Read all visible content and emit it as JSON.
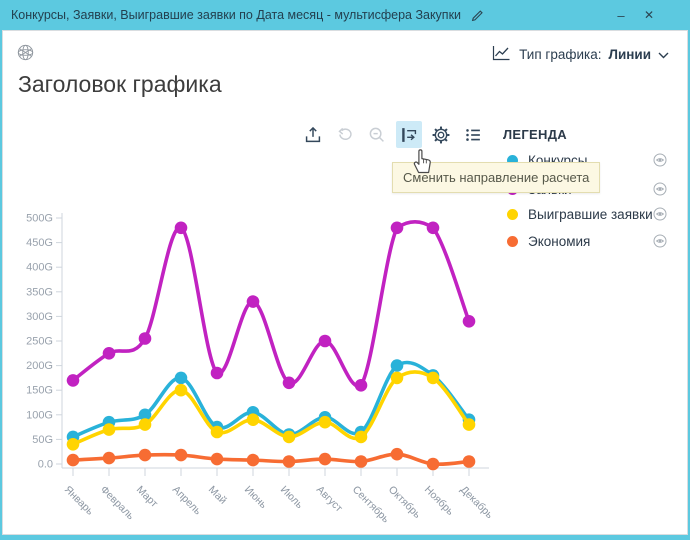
{
  "window": {
    "title": "Конкурсы, Заявки, Выигравшие заявки по Дата месяц - мультисфера Закупки",
    "minimize_glyph": "–",
    "close_glyph": "✕",
    "titlebar_color": "#5cc9e0"
  },
  "header": {
    "title": "Заголовок графика"
  },
  "chart_type": {
    "label": "Тип графика:",
    "value": "Линии"
  },
  "tooltip": {
    "text": "Сменить направление расчета"
  },
  "legend": {
    "title": "ЛЕГЕНДА",
    "items": [
      {
        "label": "Конкурсы",
        "color": "#29b2d9"
      },
      {
        "label": "Заявки",
        "color": "#c122c1"
      },
      {
        "label": "Выигравшие заявки",
        "color": "#ffd400"
      },
      {
        "label": "Экономия",
        "color": "#f76c33"
      }
    ]
  },
  "chart_data": {
    "type": "line",
    "title": "Заголовок графика",
    "xlabel": "Дата месяц",
    "ylabel": "",
    "unit": "G",
    "ylim": [
      0,
      500
    ],
    "y_tick_step": 50,
    "zero_label": "0.0",
    "grid": false,
    "legend_position": "right",
    "categories": [
      "Январь",
      "Февраль",
      "Март",
      "Апрель",
      "Май",
      "Июнь",
      "Июль",
      "Август",
      "Сентябрь",
      "Октябрь",
      "Ноябрь",
      "Декабрь"
    ],
    "series": [
      {
        "name": "Конкурсы",
        "color": "#29b2d9",
        "values": [
          55,
          85,
          100,
          175,
          75,
          105,
          60,
          95,
          65,
          200,
          180,
          90
        ]
      },
      {
        "name": "Заявки",
        "color": "#c122c1",
        "values": [
          170,
          225,
          255,
          480,
          185,
          330,
          165,
          250,
          160,
          480,
          480,
          290
        ]
      },
      {
        "name": "Выигравшие заявки",
        "color": "#ffd400",
        "values": [
          40,
          70,
          80,
          150,
          65,
          90,
          55,
          85,
          55,
          175,
          175,
          80
        ]
      },
      {
        "name": "Экономия",
        "color": "#f76c33",
        "values": [
          8,
          12,
          18,
          18,
          10,
          8,
          5,
          10,
          5,
          20,
          0,
          5
        ]
      }
    ],
    "draw_order": [
      1,
      0,
      2,
      3
    ]
  }
}
